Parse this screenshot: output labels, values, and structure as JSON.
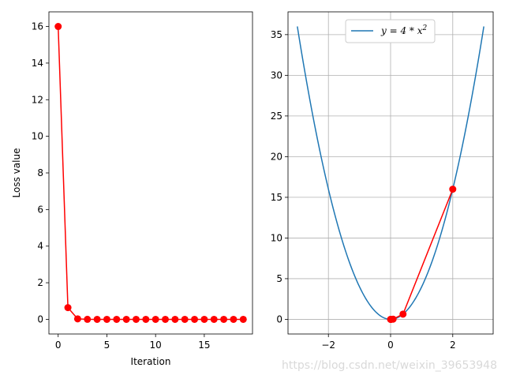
{
  "chart_data": [
    {
      "type": "line",
      "title": "",
      "xlabel": "Iteration",
      "ylabel": "Loss value",
      "xlim": [
        -0.95,
        19.95
      ],
      "ylim": [
        -0.8,
        16.8
      ],
      "xticks": [
        0,
        5,
        10,
        15
      ],
      "yticks": [
        0,
        2,
        4,
        6,
        8,
        10,
        12,
        14,
        16
      ],
      "grid": false,
      "series": [
        {
          "color": "#ff0000",
          "marker": "circle",
          "x": [
            0,
            1,
            2,
            3,
            4,
            5,
            6,
            7,
            8,
            9,
            10,
            11,
            12,
            13,
            14,
            15,
            16,
            17,
            18,
            19
          ],
          "y": [
            16,
            0.64,
            0.0256,
            0.001,
            0,
            0,
            0,
            0,
            0,
            0,
            0,
            0,
            0,
            0,
            0,
            0,
            0,
            0,
            0,
            0
          ]
        }
      ]
    },
    {
      "type": "line",
      "title": "",
      "xlabel": "",
      "ylabel": "",
      "xlim": [
        -3.3,
        3.3
      ],
      "ylim": [
        -1.8,
        37.8
      ],
      "xticks": [
        -2,
        0,
        2
      ],
      "yticks": [
        0,
        5,
        10,
        15,
        20,
        25,
        30,
        35
      ],
      "grid": true,
      "legend_position": "top-center",
      "series": [
        {
          "name": "y = 4 * x^2",
          "legend_label": "y = 4 * x",
          "legend_superscript": "2",
          "color": "#1f77b4",
          "function": "4*x^2",
          "x_range": [
            -3,
            3
          ]
        },
        {
          "color": "#ff0000",
          "marker": "circle",
          "x": [
            2,
            0.4,
            0.08,
            0.016,
            0.0032,
            0.00064
          ],
          "y": [
            16,
            0.64,
            0.0256,
            0.001,
            4e-05,
            1.6e-06
          ]
        }
      ]
    }
  ],
  "watermark": "https://blog.csdn.net/weixin_39653948"
}
